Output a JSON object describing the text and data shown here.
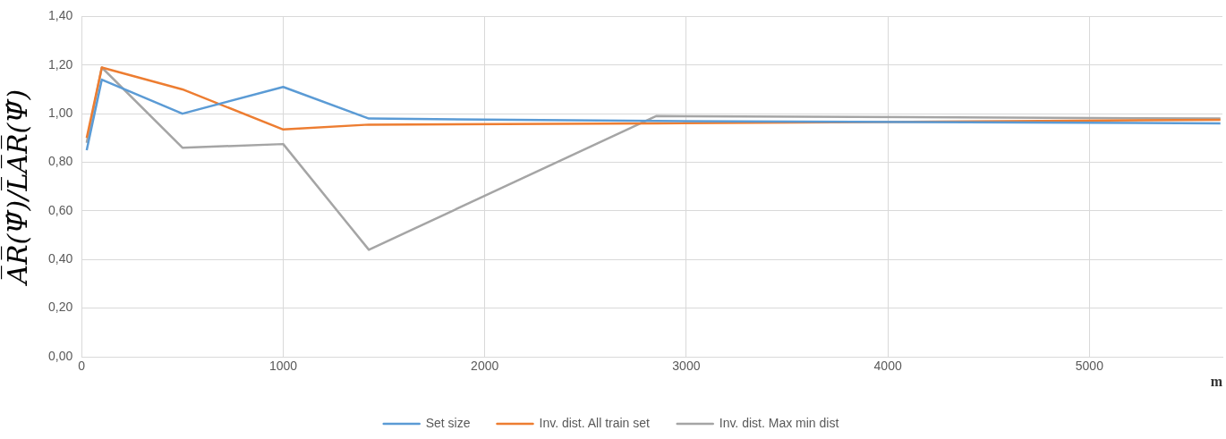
{
  "chart_data": {
    "type": "line",
    "xlabel": "m",
    "ylabel": "A̅R̅(Ψ̂)/L̅A̅R̅(Ψ̂)",
    "xlim": [
      0,
      5660
    ],
    "xticks": [
      0,
      1000,
      2000,
      3000,
      4000,
      5000
    ],
    "ylim": [
      0,
      1.4
    ],
    "yticks": [
      {
        "value": 0,
        "label": "0,00"
      },
      {
        "value": 0.2,
        "label": "0,20"
      },
      {
        "value": 0.4,
        "label": "0,40"
      },
      {
        "value": 0.6,
        "label": "0,60"
      },
      {
        "value": 0.8,
        "label": "0,80"
      },
      {
        "value": 1,
        "label": "1,00"
      },
      {
        "value": 1.2,
        "label": "1,20"
      },
      {
        "value": 1.4,
        "label": "1,40"
      }
    ],
    "x": [
      25,
      100,
      500,
      1000,
      1425,
      2850,
      5650
    ],
    "series": [
      {
        "name": "Set size",
        "color": "#5b9bd5",
        "values": [
          0.85,
          1.14,
          1.0,
          1.11,
          0.98,
          0.97,
          0.96
        ]
      },
      {
        "name": "Inv. dist. All train set",
        "color": "#ed7d31",
        "values": [
          0.9,
          1.19,
          1.1,
          0.935,
          0.955,
          0.96,
          0.975
        ]
      },
      {
        "name": "Inv. dist. Max min dist",
        "color": "#a5a5a5",
        "values": [
          0.88,
          1.19,
          0.86,
          0.875,
          0.44,
          0.99,
          0.98
        ]
      }
    ],
    "grid": true,
    "legend": "bottom",
    "marker": "none",
    "line_style": "solid"
  }
}
